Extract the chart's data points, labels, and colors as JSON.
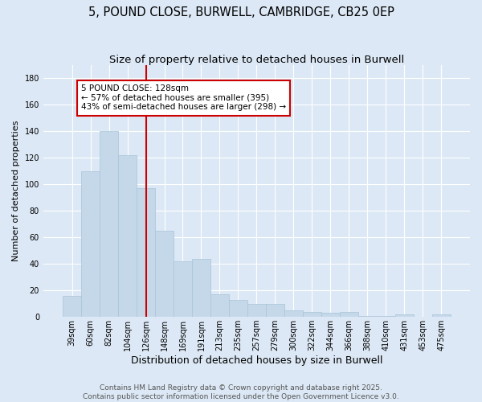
{
  "title": "5, POUND CLOSE, BURWELL, CAMBRIDGE, CB25 0EP",
  "subtitle": "Size of property relative to detached houses in Burwell",
  "xlabel": "Distribution of detached houses by size in Burwell",
  "ylabel": "Number of detached properties",
  "categories": [
    "39sqm",
    "60sqm",
    "82sqm",
    "104sqm",
    "126sqm",
    "148sqm",
    "169sqm",
    "191sqm",
    "213sqm",
    "235sqm",
    "257sqm",
    "279sqm",
    "300sqm",
    "322sqm",
    "344sqm",
    "366sqm",
    "388sqm",
    "410sqm",
    "431sqm",
    "453sqm",
    "475sqm"
  ],
  "values": [
    16,
    110,
    140,
    122,
    97,
    65,
    42,
    44,
    17,
    13,
    10,
    10,
    5,
    4,
    3,
    4,
    1,
    1,
    2,
    0,
    2
  ],
  "bar_color": "#c5d8ea",
  "bar_edge_color": "#a8c4d8",
  "red_line_x": 4,
  "annotation_title": "5 POUND CLOSE: 128sqm",
  "annotation_line1": "← 57% of detached houses are smaller (395)",
  "annotation_line2": "43% of semi-detached houses are larger (298) →",
  "annotation_box_color": "#ffffff",
  "annotation_box_edge": "#cc0000",
  "red_line_color": "#cc0000",
  "background_color": "#dce8f5",
  "grid_color": "#ffffff",
  "ylim": [
    0,
    190
  ],
  "yticks": [
    0,
    20,
    40,
    60,
    80,
    100,
    120,
    140,
    160,
    180
  ],
  "footer_line1": "Contains HM Land Registry data © Crown copyright and database right 2025.",
  "footer_line2": "Contains public sector information licensed under the Open Government Licence v3.0.",
  "title_fontsize": 10.5,
  "subtitle_fontsize": 9.5,
  "xlabel_fontsize": 9,
  "ylabel_fontsize": 8,
  "tick_fontsize": 7,
  "annotation_fontsize": 7.5,
  "footer_fontsize": 6.5
}
